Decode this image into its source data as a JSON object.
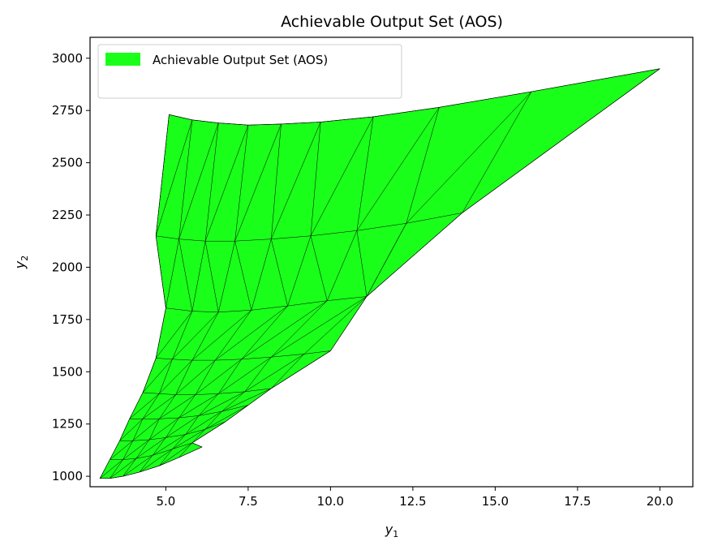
{
  "chart_data": {
    "type": "area",
    "title": "Achievable Output Set (AOS)",
    "xlabel": "y",
    "xlabel_sub": "1",
    "ylabel": "y",
    "ylabel_sub": "2",
    "xlim": [
      2.7,
      21.0
    ],
    "ylim": [
      950,
      3100
    ],
    "xticks": [
      5.0,
      7.5,
      10.0,
      12.5,
      15.0,
      17.5,
      20.0
    ],
    "xtick_labels": [
      "5.0",
      "7.5",
      "10.0",
      "12.5",
      "15.0",
      "17.5",
      "20.0"
    ],
    "yticks": [
      1000,
      1250,
      1500,
      1750,
      2000,
      2250,
      2500,
      2750,
      3000
    ],
    "ytick_labels": [
      "1000",
      "1250",
      "1500",
      "1750",
      "2000",
      "2250",
      "2500",
      "2750",
      "3000"
    ],
    "legend": {
      "position": "top-left",
      "entries": [
        {
          "name": "Achievable Output Set (AOS)",
          "color": "#1aff1a"
        }
      ]
    },
    "fill_color": "#1aff1a",
    "edge_color": "#000000",
    "grid": false,
    "mesh_rows": [
      {
        "points": [
          [
            3.0,
            990
          ],
          [
            3.3,
            990
          ],
          [
            3.7,
            1000
          ],
          [
            4.2,
            1020
          ],
          [
            4.8,
            1050
          ],
          [
            5.4,
            1090
          ],
          [
            6.1,
            1140
          ]
        ]
      },
      {
        "points": [
          [
            3.3,
            1080
          ],
          [
            3.7,
            1080
          ],
          [
            4.1,
            1085
          ],
          [
            4.6,
            1100
          ],
          [
            5.2,
            1130
          ],
          [
            5.8,
            1160
          ]
        ]
      },
      {
        "points": [
          [
            3.6,
            1170
          ],
          [
            4.0,
            1170
          ],
          [
            4.5,
            1175
          ],
          [
            5.0,
            1185
          ],
          [
            5.6,
            1200
          ],
          [
            6.2,
            1225
          ],
          [
            6.8,
            1260
          ]
        ]
      },
      {
        "points": [
          [
            3.9,
            1275
          ],
          [
            4.3,
            1275
          ],
          [
            4.8,
            1275
          ],
          [
            5.4,
            1280
          ],
          [
            6.0,
            1290
          ],
          [
            6.7,
            1310
          ],
          [
            7.5,
            1340
          ]
        ]
      },
      {
        "points": [
          [
            4.3,
            1400
          ],
          [
            4.8,
            1395
          ],
          [
            5.3,
            1390
          ],
          [
            5.9,
            1390
          ],
          [
            6.6,
            1395
          ],
          [
            7.4,
            1405
          ],
          [
            8.2,
            1420
          ]
        ]
      },
      {
        "points": [
          [
            4.7,
            1565
          ],
          [
            5.2,
            1560
          ],
          [
            5.8,
            1555
          ],
          [
            6.5,
            1555
          ],
          [
            7.3,
            1560
          ],
          [
            8.2,
            1570
          ],
          [
            9.2,
            1585
          ],
          [
            10.0,
            1600
          ]
        ]
      },
      {
        "points": [
          [
            5.0,
            1805
          ],
          [
            5.8,
            1790
          ],
          [
            6.6,
            1785
          ],
          [
            7.6,
            1795
          ],
          [
            8.7,
            1815
          ],
          [
            9.9,
            1840
          ],
          [
            11.1,
            1860
          ]
        ]
      },
      {
        "points": [
          [
            4.7,
            2150
          ],
          [
            5.4,
            2135
          ],
          [
            6.2,
            2125
          ],
          [
            7.1,
            2125
          ],
          [
            8.2,
            2135
          ],
          [
            9.4,
            2150
          ],
          [
            10.8,
            2175
          ],
          [
            12.3,
            2210
          ],
          [
            14.0,
            2260
          ]
        ]
      },
      {
        "points": [
          [
            5.1,
            2730
          ],
          [
            5.8,
            2705
          ],
          [
            6.6,
            2690
          ],
          [
            7.5,
            2680
          ],
          [
            8.5,
            2685
          ],
          [
            9.7,
            2695
          ],
          [
            11.3,
            2720
          ],
          [
            13.3,
            2765
          ],
          [
            16.1,
            2840
          ],
          [
            20.0,
            2950
          ]
        ]
      }
    ]
  }
}
